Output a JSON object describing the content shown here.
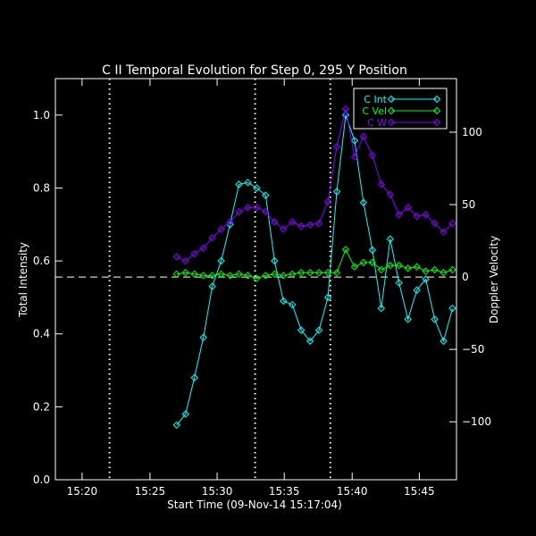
{
  "chart_data": {
    "type": "line",
    "title": "C II Temporal Evolution for Step 0, 295 Y Position",
    "xlabel": "Start Time (09-Nov-14 15:17:04)",
    "ylabel_left": "Total Intensity",
    "ylabel_right": "Doppler Velocity",
    "xlim": [
      15.3,
      15.796
    ],
    "ylim_left": [
      0.0,
      1.1
    ],
    "ylim_right": [
      -140,
      137
    ],
    "x_ticks": [
      {
        "value": 15.333,
        "label": "15:20"
      },
      {
        "value": 15.417,
        "label": "15:25"
      },
      {
        "value": 15.5,
        "label": "15:30"
      },
      {
        "value": 15.583,
        "label": "15:35"
      },
      {
        "value": 15.667,
        "label": "15:40"
      },
      {
        "value": 15.75,
        "label": "15:45"
      }
    ],
    "y_ticks_left": [
      {
        "value": 0.0,
        "label": "0.0"
      },
      {
        "value": 0.2,
        "label": "0.2"
      },
      {
        "value": 0.4,
        "label": "0.4"
      },
      {
        "value": 0.6,
        "label": "0.6"
      },
      {
        "value": 0.8,
        "label": "0.8"
      },
      {
        "value": 1.0,
        "label": "1.0"
      }
    ],
    "y_ticks_right": [
      {
        "value": -100,
        "label": "−100"
      },
      {
        "value": -50,
        "label": "−50"
      },
      {
        "value": 0,
        "label": "0"
      },
      {
        "value": 50,
        "label": "50"
      },
      {
        "value": 100,
        "label": "100"
      }
    ],
    "vertical_lines": [
      15.367,
      15.547,
      15.64
    ],
    "horizontal_reference": {
      "axis": "right",
      "value": 0
    },
    "legend": {
      "position": "top-right"
    },
    "series": [
      {
        "name": "C Int",
        "axis": "left",
        "color": "#00ffff",
        "x": [
          15.45,
          15.461,
          15.472,
          15.483,
          15.494,
          15.505,
          15.516,
          15.527,
          15.538,
          15.549,
          15.56,
          15.571,
          15.582,
          15.593,
          15.604,
          15.615,
          15.626,
          15.637,
          15.648,
          15.659,
          15.67,
          15.681,
          15.692,
          15.703,
          15.714,
          15.725,
          15.736,
          15.747,
          15.758,
          15.769,
          15.78,
          15.791
        ],
        "values": [
          0.15,
          0.18,
          0.28,
          0.39,
          0.53,
          0.6,
          0.7,
          0.81,
          0.815,
          0.8,
          0.78,
          0.6,
          0.49,
          0.48,
          0.41,
          0.38,
          0.41,
          0.5,
          0.79,
          1.0,
          0.93,
          0.76,
          0.63,
          0.47,
          0.66,
          0.54,
          0.44,
          0.52,
          0.55,
          0.44,
          0.38,
          0.47
        ]
      },
      {
        "name": "C Vel",
        "axis": "right",
        "color": "#00ff00",
        "x": [
          15.45,
          15.461,
          15.472,
          15.483,
          15.494,
          15.505,
          15.516,
          15.527,
          15.538,
          15.549,
          15.56,
          15.571,
          15.582,
          15.593,
          15.604,
          15.615,
          15.626,
          15.637,
          15.648,
          15.659,
          15.67,
          15.681,
          15.692,
          15.703,
          15.714,
          15.725,
          15.736,
          15.747,
          15.758,
          15.769,
          15.78,
          15.791
        ],
        "values": [
          2,
          3,
          2,
          1,
          1,
          2,
          1,
          2,
          1,
          -1,
          1,
          2,
          1,
          2,
          3,
          3,
          3,
          3,
          3,
          19,
          7,
          10,
          10,
          5,
          8,
          8,
          6,
          7,
          4,
          5,
          3,
          5
        ]
      },
      {
        "name": "C W",
        "axis": "right",
        "color": "#8800ff",
        "x": [
          15.45,
          15.461,
          15.472,
          15.483,
          15.494,
          15.505,
          15.516,
          15.527,
          15.538,
          15.549,
          15.56,
          15.571,
          15.582,
          15.593,
          15.604,
          15.615,
          15.626,
          15.637,
          15.648,
          15.659,
          15.67,
          15.681,
          15.692,
          15.703,
          15.714,
          15.725,
          15.736,
          15.747,
          15.758,
          15.769,
          15.78,
          15.791
        ],
        "values": [
          14,
          11,
          16,
          20,
          27,
          33,
          38,
          45,
          48,
          48,
          45,
          38,
          33,
          38,
          35,
          36,
          37,
          52,
          90,
          116,
          83,
          97,
          84,
          64,
          57,
          43,
          48,
          42,
          43,
          37,
          31,
          37
        ]
      }
    ]
  }
}
